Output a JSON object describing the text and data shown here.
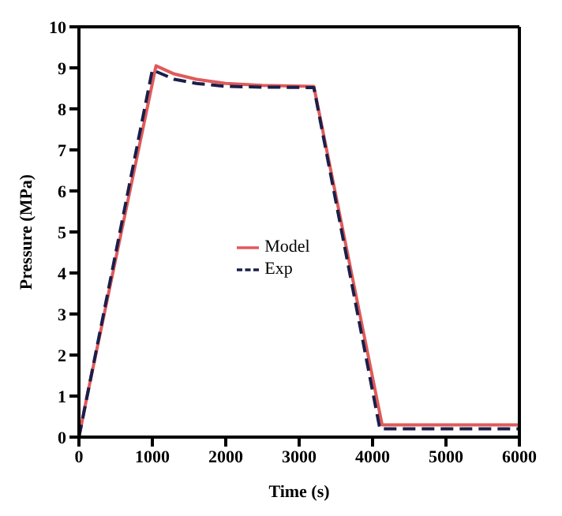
{
  "chart_data": {
    "type": "line",
    "xlabel": "Time (s)",
    "ylabel": "Pressure (MPa)",
    "xlim": [
      0,
      6000
    ],
    "xticks": [
      0,
      1000,
      2000,
      3000,
      4000,
      5000,
      6000
    ],
    "ylim": [
      0,
      10
    ],
    "yticks": [
      0,
      1,
      2,
      3,
      4,
      5,
      6,
      7,
      8,
      9,
      10
    ],
    "grid": false,
    "legend": "center",
    "marker": "none",
    "series": [
      {
        "name": "Model",
        "color": "#e05a5a",
        "line_style": "solid",
        "x": [
          0,
          100,
          1050,
          1300,
          1600,
          2000,
          2500,
          3200,
          4130,
          6000
        ],
        "values": [
          0,
          0.9,
          9.05,
          8.85,
          8.72,
          8.62,
          8.57,
          8.55,
          0.3,
          0.3
        ]
      },
      {
        "name": "Exp",
        "color": "#1a1f4a",
        "line_style": "dashed",
        "x": [
          0,
          1000,
          1300,
          1600,
          2000,
          2500,
          3200,
          4100,
          6000
        ],
        "values": [
          0,
          8.95,
          8.72,
          8.62,
          8.55,
          8.53,
          8.52,
          0.2,
          0.2
        ]
      }
    ]
  }
}
